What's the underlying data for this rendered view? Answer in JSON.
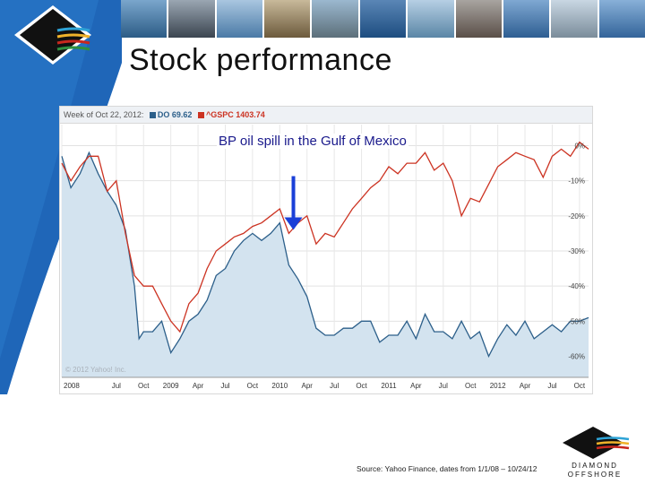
{
  "slide": {
    "title": "Stock performance",
    "source": "Source: Yahoo Finance, dates from 1/1/08 – 10/24/12",
    "watermark": "© 2012 Yahoo! Inc.",
    "brand_logo_text": "DIAMOND OFFSHORE"
  },
  "colors": {
    "accent_blue": "#1f66b8",
    "do_line": "#2c5f8a",
    "do_fill": "#d3e3ef",
    "gspc_line": "#cc3322",
    "arrow": "#1a3fd8"
  },
  "chart_data": {
    "type": "line",
    "header": {
      "date_label": "Week of Oct 22, 2012:",
      "series1_label": "DO 69.62",
      "series2_label": "^GSPC 1403.74"
    },
    "x_tick_labels": [
      "2008",
      "Jul",
      "Oct",
      "2009",
      "Apr",
      "Jul",
      "Oct",
      "2010",
      "Apr",
      "Jul",
      "Oct",
      "2011",
      "Apr",
      "Jul",
      "Oct",
      "2012",
      "Apr",
      "Jul",
      "Oct"
    ],
    "x_ticks": [
      0,
      6,
      9,
      12,
      15,
      18,
      21,
      24,
      27,
      30,
      33,
      36,
      39,
      42,
      45,
      48,
      51,
      54,
      57
    ],
    "y_tick_labels": [
      "0%",
      "-10%",
      "-20%",
      "-30%",
      "-40%",
      "-50%",
      "-60%"
    ],
    "y_ticks": [
      0,
      -10,
      -20,
      -30,
      -40,
      -50,
      -60
    ],
    "xlim": [
      0,
      58
    ],
    "ylim": [
      -66,
      6
    ],
    "unit": "percent change",
    "annotation": {
      "text": "BP oil spill in the Gulf of Mexico",
      "x": 25.5,
      "y": -24
    },
    "series": [
      {
        "name": "DO",
        "x": [
          0,
          1,
          2,
          3,
          4,
          5,
          6,
          7,
          8,
          8.5,
          9,
          10,
          11,
          12,
          13,
          14,
          15,
          16,
          17,
          18,
          19,
          20,
          21,
          22,
          23,
          24,
          25,
          26,
          27,
          28,
          29,
          30,
          31,
          32,
          33,
          34,
          35,
          36,
          37,
          38,
          39,
          40,
          41,
          42,
          43,
          44,
          45,
          46,
          47,
          48,
          49,
          50,
          51,
          52,
          53,
          54,
          55,
          56,
          57,
          58
        ],
        "y": [
          -3,
          -12,
          -8,
          -2,
          -8,
          -13,
          -17,
          -24,
          -40,
          -55,
          -53,
          -53,
          -50,
          -59,
          -55,
          -50,
          -48,
          -44,
          -37,
          -35,
          -30,
          -27,
          -25,
          -27,
          -25,
          -22,
          -34,
          -38,
          -43,
          -52,
          -54,
          -54,
          -52,
          -52,
          -50,
          -50,
          -56,
          -54,
          -54,
          -50,
          -55,
          -48,
          -53,
          -53,
          -55,
          -50,
          -55,
          -53,
          -60,
          -55,
          -51,
          -54,
          -50,
          -55,
          -53,
          -51,
          -53,
          -50,
          -50,
          -49
        ]
      },
      {
        "name": "^GSPC",
        "x": [
          0,
          1,
          2,
          3,
          4,
          5,
          6,
          7,
          8,
          9,
          10,
          11,
          12,
          13,
          14,
          15,
          16,
          17,
          18,
          19,
          20,
          21,
          22,
          23,
          24,
          25,
          26,
          27,
          28,
          29,
          30,
          31,
          32,
          33,
          34,
          35,
          36,
          37,
          38,
          39,
          40,
          41,
          42,
          43,
          44,
          45,
          46,
          47,
          48,
          49,
          50,
          51,
          52,
          53,
          54,
          55,
          56,
          57,
          58
        ],
        "y": [
          -5,
          -10,
          -6,
          -3,
          -3,
          -13,
          -10,
          -25,
          -37,
          -40,
          -40,
          -45,
          -50,
          -53,
          -45,
          -42,
          -35,
          -30,
          -28,
          -26,
          -25,
          -23,
          -22,
          -20,
          -18,
          -25,
          -22,
          -20,
          -28,
          -25,
          -26,
          -22,
          -18,
          -15,
          -12,
          -10,
          -6,
          -8,
          -5,
          -5,
          -2,
          -7,
          -5,
          -10,
          -20,
          -15,
          -16,
          -11,
          -6,
          -4,
          -2,
          -3,
          -4,
          -9,
          -3,
          -1,
          -3,
          1,
          -1
        ]
      }
    ]
  }
}
